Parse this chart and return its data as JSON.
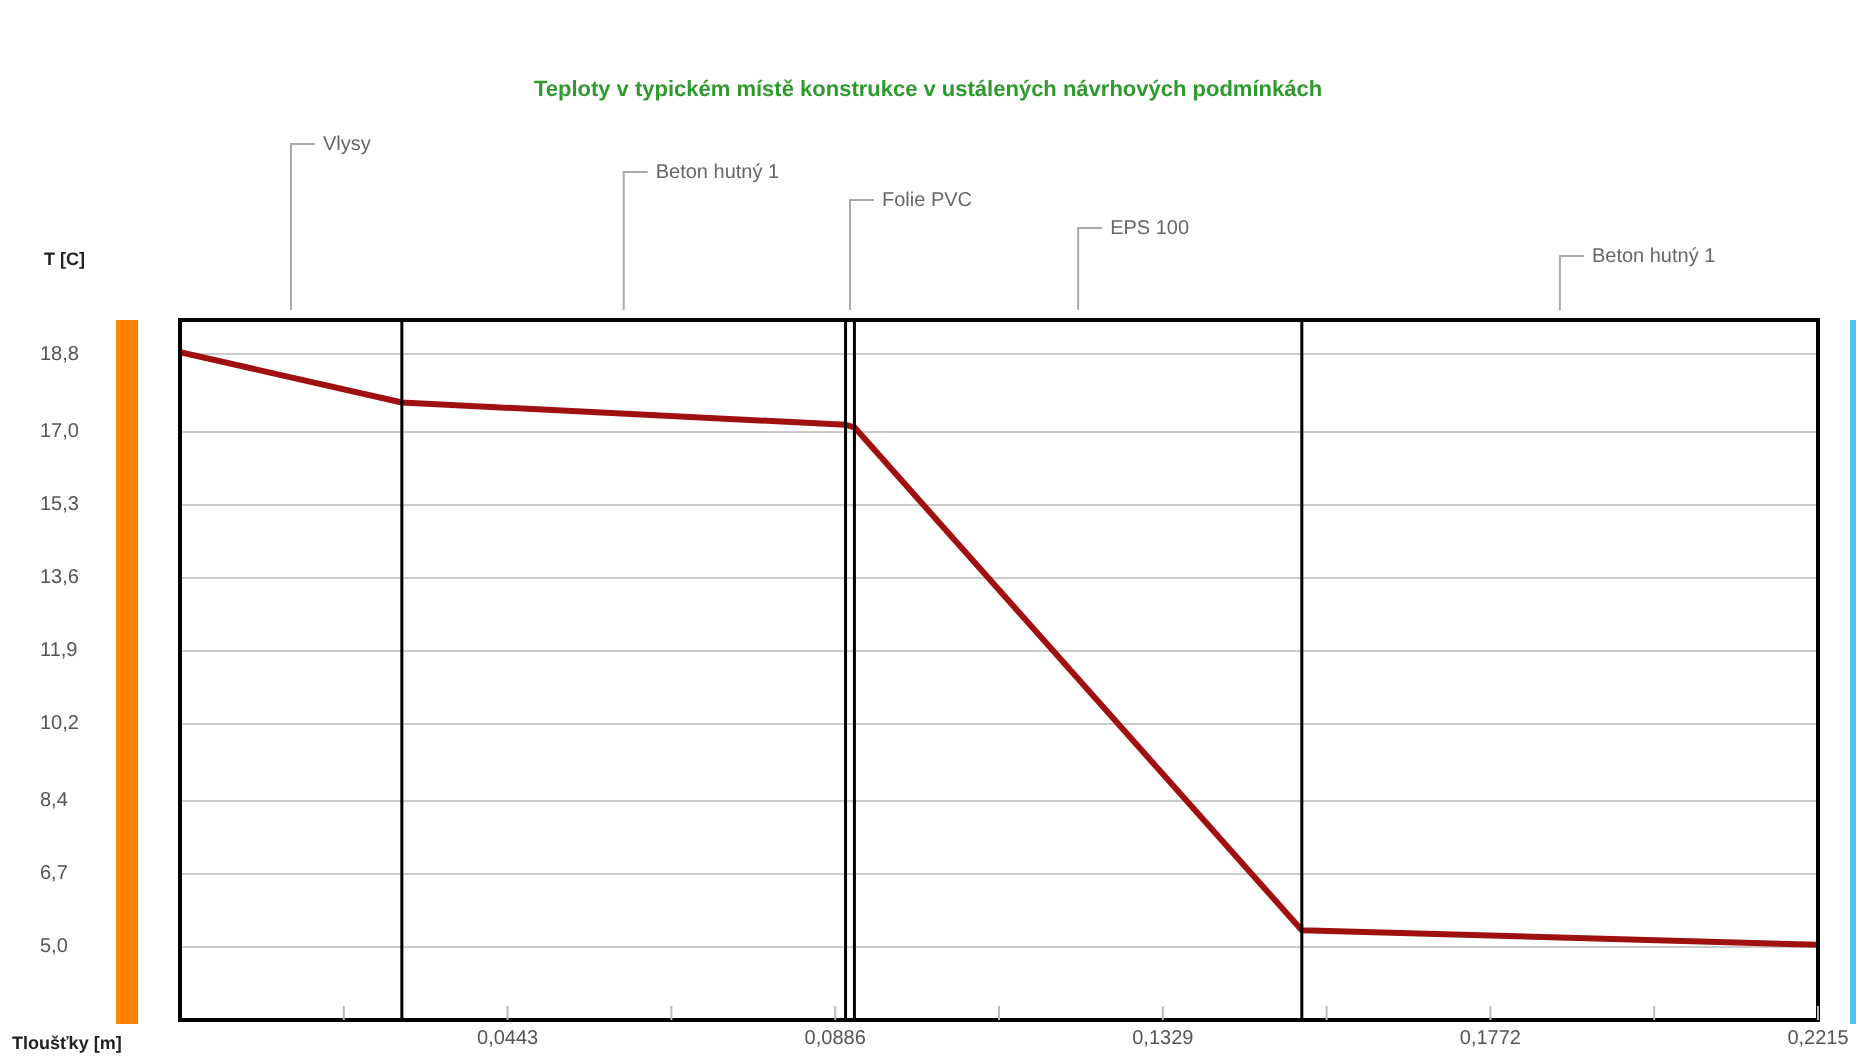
{
  "chart_data": {
    "type": "line",
    "title": "Teploty v typickém místě konstrukce v ustálených návrhových podmínkách",
    "xlabel": "Tloušťky [m]",
    "ylabel": "T [C]",
    "x": [
      0,
      0.03,
      0.09,
      0.0912,
      0.1517,
      0.2215
    ],
    "series": [
      {
        "color": "#a01010",
        "values": [
          18.85,
          17.68,
          17.16,
          17.1,
          5.39,
          5.05
        ]
      }
    ],
    "xlim": [
      0,
      0.2215
    ],
    "xticks": [
      {
        "value": 0.02215,
        "label": null
      },
      {
        "value": 0.0443,
        "label": "0,0443"
      },
      {
        "value": 0.06645,
        "label": null
      },
      {
        "value": 0.0886,
        "label": "0,0886"
      },
      {
        "value": 0.11075,
        "label": null
      },
      {
        "value": 0.1329,
        "label": "0,1329"
      },
      {
        "value": 0.15505,
        "label": null
      },
      {
        "value": 0.1772,
        "label": "0,1772"
      },
      {
        "value": 0.19935,
        "label": null
      },
      {
        "value": 0.2215,
        "label": "0,2215"
      }
    ],
    "ylim": [
      3.3,
      19.6
    ],
    "yticks": [
      {
        "value": 5.0,
        "label": "5,0"
      },
      {
        "value": 6.7,
        "label": "6,7"
      },
      {
        "value": 8.4,
        "label": "8,4"
      },
      {
        "value": 10.2,
        "label": "10,2"
      },
      {
        "value": 11.9,
        "label": "11,9"
      },
      {
        "value": 13.6,
        "label": "13,6"
      },
      {
        "value": 15.3,
        "label": "15,3"
      },
      {
        "value": 17.0,
        "label": "17,0"
      },
      {
        "value": 18.8,
        "label": "18,8"
      }
    ],
    "ref_lines": [
      {
        "axis": "x",
        "value": 0.03
      },
      {
        "axis": "x",
        "value": 0.09
      },
      {
        "axis": "x",
        "value": 0.0912
      },
      {
        "axis": "x",
        "value": 0.1517
      }
    ],
    "annotations": [
      "Vlysy",
      "Beton hutný 1",
      "Folie PVC",
      "EPS 100",
      "Beton hutný 1"
    ],
    "grid": "y",
    "legend": false,
    "marker": "none",
    "line_style": "solid"
  }
}
